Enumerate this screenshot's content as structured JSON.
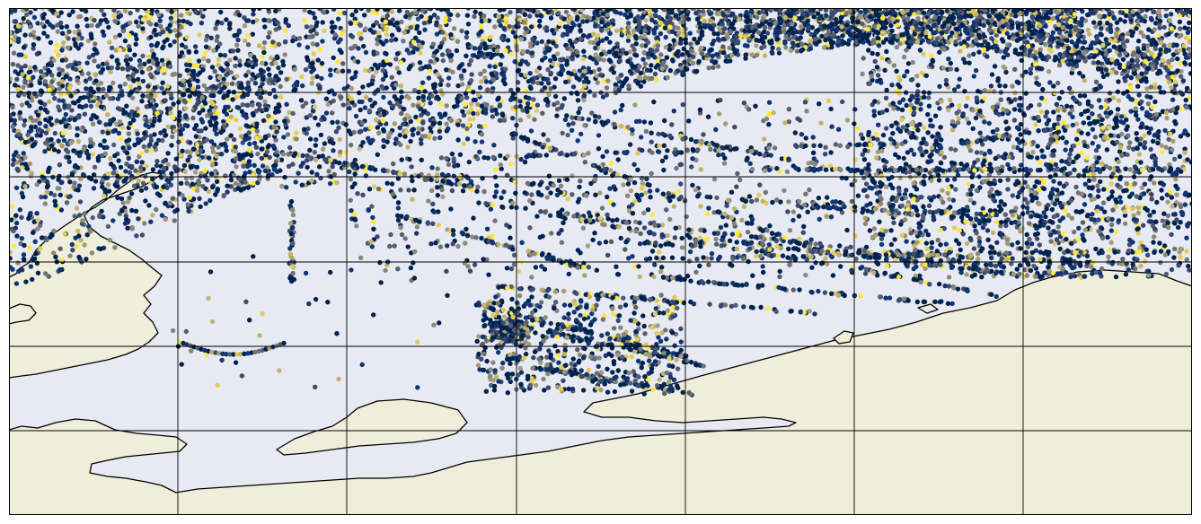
{
  "map": {
    "colors": {
      "ocean": "#e8eaf3",
      "land": "#efeedb",
      "coastline": "#000000",
      "gridline": "#000000"
    },
    "colormap": [
      "#00224e",
      "#123570",
      "#3b496c",
      "#575d6d",
      "#707173",
      "#8a8779",
      "#a59c74",
      "#c3b369",
      "#e1cc55",
      "#fee838"
    ],
    "colormap_weights": [
      34,
      20,
      10,
      7,
      6,
      6,
      5,
      4,
      4,
      4
    ]
  }
}
